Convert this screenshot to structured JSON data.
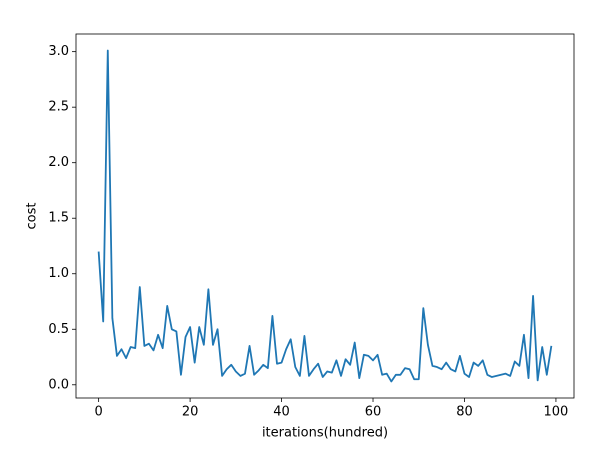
{
  "chart_data": {
    "type": "line",
    "xlabel": "iterations(hundred)",
    "ylabel": "cost",
    "x": [
      0,
      1,
      2,
      3,
      4,
      5,
      6,
      7,
      8,
      9,
      10,
      11,
      12,
      13,
      14,
      15,
      16,
      17,
      18,
      19,
      20,
      21,
      22,
      23,
      24,
      25,
      26,
      27,
      28,
      29,
      30,
      31,
      32,
      33,
      34,
      35,
      36,
      37,
      38,
      39,
      40,
      41,
      42,
      43,
      44,
      45,
      46,
      47,
      48,
      49,
      50,
      51,
      52,
      53,
      54,
      55,
      56,
      57,
      58,
      59,
      60,
      61,
      62,
      63,
      64,
      65,
      66,
      67,
      68,
      69,
      70,
      71,
      72,
      73,
      74,
      75,
      76,
      77,
      78,
      79,
      80,
      81,
      82,
      83,
      84,
      85,
      86,
      87,
      88,
      89,
      90,
      91,
      92,
      93,
      94,
      95,
      96,
      97,
      98,
      99
    ],
    "values": [
      1.2,
      0.57,
      3.01,
      0.6,
      0.26,
      0.32,
      0.24,
      0.34,
      0.33,
      0.88,
      0.35,
      0.37,
      0.31,
      0.45,
      0.33,
      0.71,
      0.5,
      0.48,
      0.09,
      0.43,
      0.52,
      0.2,
      0.52,
      0.36,
      0.86,
      0.36,
      0.5,
      0.08,
      0.14,
      0.18,
      0.12,
      0.08,
      0.1,
      0.35,
      0.09,
      0.13,
      0.18,
      0.15,
      0.62,
      0.19,
      0.2,
      0.32,
      0.41,
      0.16,
      0.08,
      0.44,
      0.08,
      0.14,
      0.19,
      0.07,
      0.12,
      0.11,
      0.22,
      0.08,
      0.23,
      0.18,
      0.38,
      0.06,
      0.27,
      0.26,
      0.22,
      0.27,
      0.09,
      0.1,
      0.03,
      0.09,
      0.09,
      0.15,
      0.14,
      0.05,
      0.05,
      0.69,
      0.36,
      0.17,
      0.16,
      0.14,
      0.2,
      0.14,
      0.12,
      0.26,
      0.1,
      0.07,
      0.2,
      0.17,
      0.22,
      0.09,
      0.07,
      0.08,
      0.09,
      0.1,
      0.08,
      0.21,
      0.17,
      0.45,
      0.06,
      0.8,
      0.04,
      0.34,
      0.09,
      0.35
    ],
    "color": "#1f77b4",
    "xlim": [
      -4.95,
      103.95
    ],
    "xticks": [
      0,
      20,
      40,
      60,
      80,
      100
    ],
    "ylim": [
      -0.119,
      3.159
    ],
    "yticks": [
      {
        "value": 0,
        "label": "0.0"
      },
      {
        "value": 0.5,
        "label": "0.5"
      },
      {
        "value": 1,
        "label": "1.0"
      },
      {
        "value": 1.5,
        "label": "1.5"
      },
      {
        "value": 2,
        "label": "2.0"
      },
      {
        "value": 2.5,
        "label": "2.5"
      },
      {
        "value": 3,
        "label": "3.0"
      }
    ]
  }
}
